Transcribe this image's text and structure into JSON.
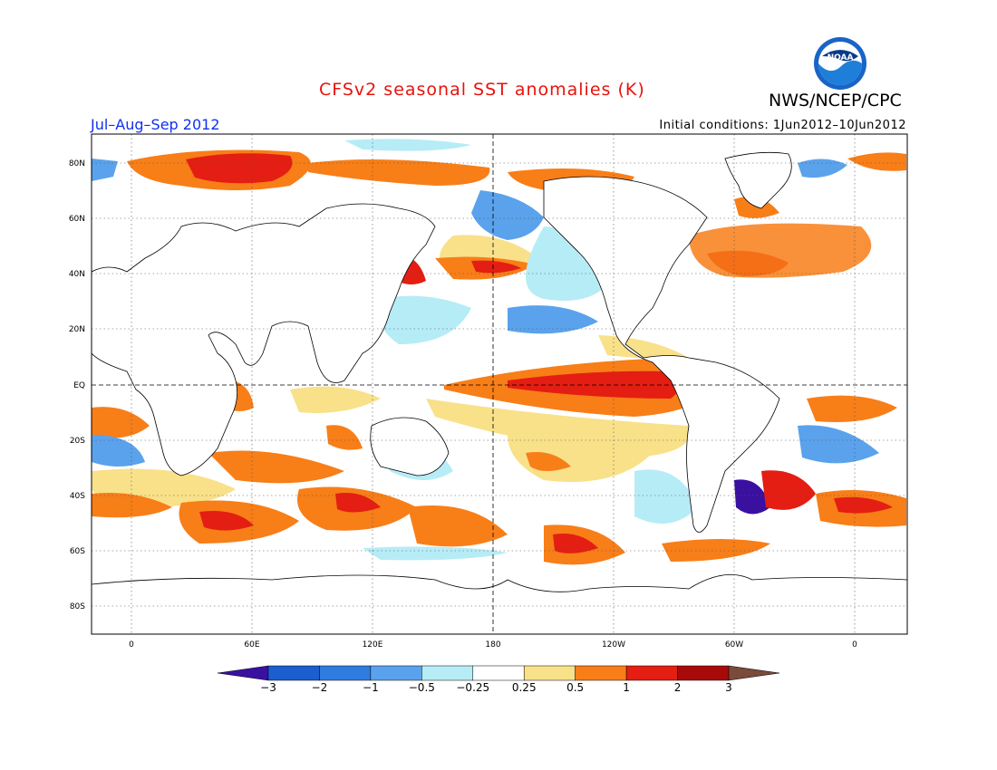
{
  "header": {
    "title": "CFSv2 seasonal SST anomalies (K)",
    "org": "NWS/NCEP/CPC",
    "period": "Jul–Aug–Sep 2012",
    "initial_conditions": "Initial conditions: 1Jun2012–10Jun2012",
    "logo_text": "NOAA"
  },
  "map": {
    "lat_labels": [
      "80N",
      "60N",
      "40N",
      "20N",
      "EQ",
      "20S",
      "40S",
      "60S",
      "80S"
    ],
    "lon_labels": [
      "0",
      "60E",
      "120E",
      "180",
      "120W",
      "60W",
      "0"
    ]
  },
  "colorbar": {
    "labels": [
      "−3",
      "−2",
      "−1",
      "−0.5",
      "−0.25",
      "0.25",
      "0.5",
      "1",
      "2",
      "3"
    ],
    "colors": [
      "#3a10a0",
      "#1a5ed0",
      "#2f7be0",
      "#5aa2ec",
      "#b6ecf6",
      "#ffffff",
      "#f9e18a",
      "#f87e18",
      "#e41e12",
      "#a80a0a",
      "#7a4a3a"
    ]
  },
  "colors": {
    "title": "#e8120c",
    "period": "#1030f0",
    "land": "#ffffff",
    "coast": "#000000"
  }
}
